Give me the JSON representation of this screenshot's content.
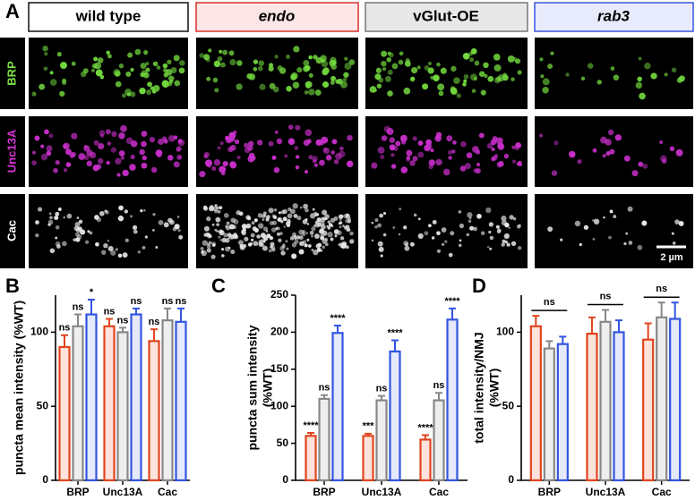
{
  "panel_a": {
    "label": "A",
    "columns": [
      "wild type",
      "endo",
      "vGlut-OE",
      "rab3"
    ],
    "rows": [
      "BRP",
      "Unc13A",
      "Cac"
    ],
    "scale_bar": "2 µm"
  },
  "chart_data": [
    {
      "type": "bar",
      "panel_label": "B",
      "ylabel": [
        "puncta mean intensity (%WT)"
      ],
      "categories": [
        "BRP",
        "Unc13A",
        "Cac"
      ],
      "ylim": [
        0,
        125
      ],
      "yticks": [
        0,
        50,
        100
      ],
      "series": [
        {
          "color": "#e0451f",
          "fill": "#fde3dc",
          "values": [
            90,
            104,
            94
          ],
          "errors": [
            8,
            5,
            8
          ],
          "annotations": [
            "ns",
            "ns",
            "ns"
          ]
        },
        {
          "color": "#888888",
          "fill": "#eeeeee",
          "values": [
            104,
            100,
            108
          ],
          "errors": [
            8,
            3,
            8
          ],
          "annotations": [
            "ns",
            "ns",
            "ns"
          ]
        },
        {
          "color": "#3355e0",
          "fill": "#e6e9fb",
          "values": [
            112,
            112,
            107
          ],
          "errors": [
            10,
            4,
            9
          ],
          "annotations": [
            "*",
            "ns",
            "ns"
          ]
        }
      ]
    },
    {
      "type": "bar",
      "panel_label": "C",
      "ylabel": [
        "puncta sum intensity",
        "(%WT)"
      ],
      "categories": [
        "BRP",
        "Unc13A",
        "Cac"
      ],
      "ylim": [
        0,
        250
      ],
      "yticks": [
        0,
        50,
        100,
        150,
        200,
        250
      ],
      "series": [
        {
          "color": "#e0451f",
          "fill": "#fde3dc",
          "values": [
            60,
            60,
            55
          ],
          "errors": [
            4,
            3,
            6
          ],
          "annotations": [
            "****",
            "***",
            "****"
          ]
        },
        {
          "color": "#888888",
          "fill": "#eeeeee",
          "values": [
            110,
            108,
            108
          ],
          "errors": [
            5,
            6,
            10
          ],
          "annotations": [
            "ns",
            "ns",
            "ns"
          ]
        },
        {
          "color": "#3355e0",
          "fill": "#e6e9fb",
          "values": [
            199,
            174,
            217
          ],
          "errors": [
            10,
            15,
            15
          ],
          "annotations": [
            "****",
            "****",
            "****"
          ]
        }
      ]
    },
    {
      "type": "bar",
      "panel_label": "D",
      "ylabel": [
        "total intensity/NMJ",
        "(%WT)"
      ],
      "categories": [
        "BRP",
        "Unc13A",
        "Cac"
      ],
      "ylim": [
        0,
        125
      ],
      "yticks": [
        0,
        50,
        100
      ],
      "group_annotations": [
        "ns",
        "ns",
        "ns"
      ],
      "series": [
        {
          "color": "#e0451f",
          "fill": "#fde3dc",
          "values": [
            104,
            99,
            95
          ],
          "errors": [
            7,
            11,
            11
          ]
        },
        {
          "color": "#888888",
          "fill": "#eeeeee",
          "values": [
            89,
            107,
            110
          ],
          "errors": [
            5,
            8,
            10
          ]
        },
        {
          "color": "#3355e0",
          "fill": "#e6e9fb",
          "values": [
            92,
            100,
            109
          ],
          "errors": [
            5,
            8,
            11
          ]
        }
      ]
    }
  ]
}
